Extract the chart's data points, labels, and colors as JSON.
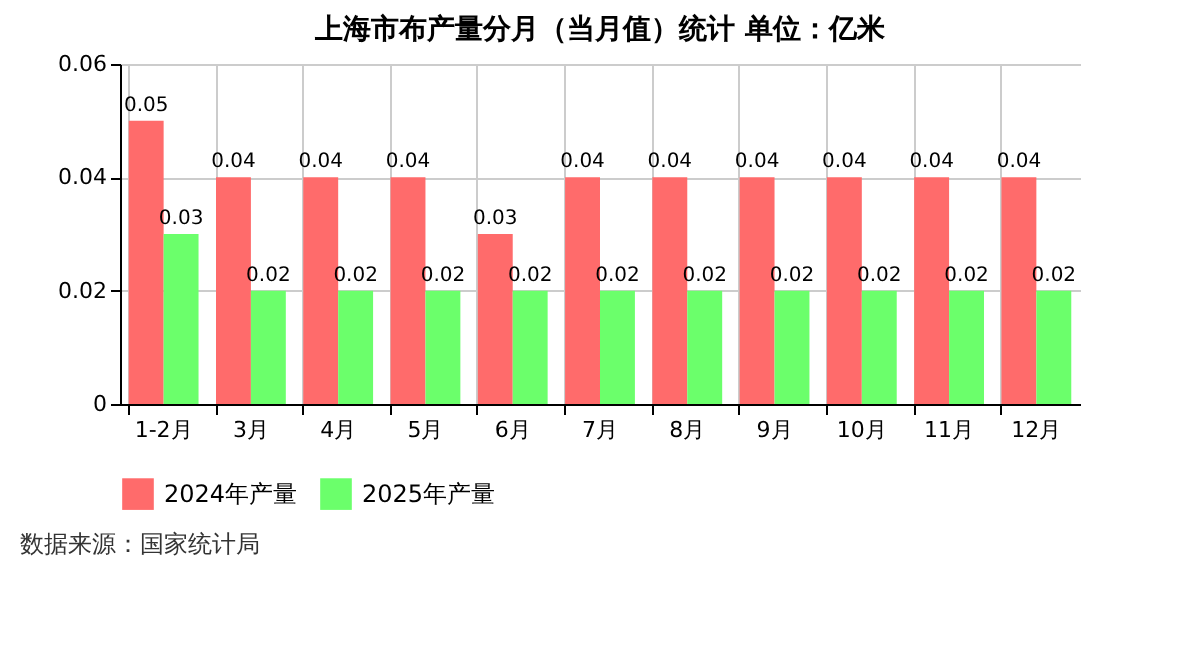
{
  "chart_data": {
    "type": "bar",
    "title": "上海市布产量分月（当月值）统计 单位：亿米",
    "categories": [
      "1-2月",
      "3月",
      "4月",
      "5月",
      "6月",
      "7月",
      "8月",
      "9月",
      "10月",
      "11月",
      "12月"
    ],
    "series": [
      {
        "name": "2024年产量",
        "color": "#ff6b6b",
        "values": [
          0.05,
          0.04,
          0.04,
          0.04,
          0.03,
          0.04,
          0.04,
          0.04,
          0.04,
          0.04,
          0.04
        ]
      },
      {
        "name": "2025年产量",
        "color": "#6bff6b",
        "values": [
          0.03,
          0.02,
          0.02,
          0.02,
          0.02,
          0.02,
          0.02,
          0.02,
          0.02,
          0.02,
          0.02
        ]
      }
    ],
    "ylim": [
      0,
      0.06
    ],
    "yticks": [
      {
        "value": 0,
        "label": "0"
      },
      {
        "value": 0.02,
        "label": "0.02"
      },
      {
        "value": 0.04,
        "label": "0.04"
      },
      {
        "value": 0.06,
        "label": "0.06"
      }
    ],
    "grid": true,
    "legend": "bottom",
    "data_labels": true,
    "annotations": [
      "数据来源：国家统计局"
    ]
  }
}
